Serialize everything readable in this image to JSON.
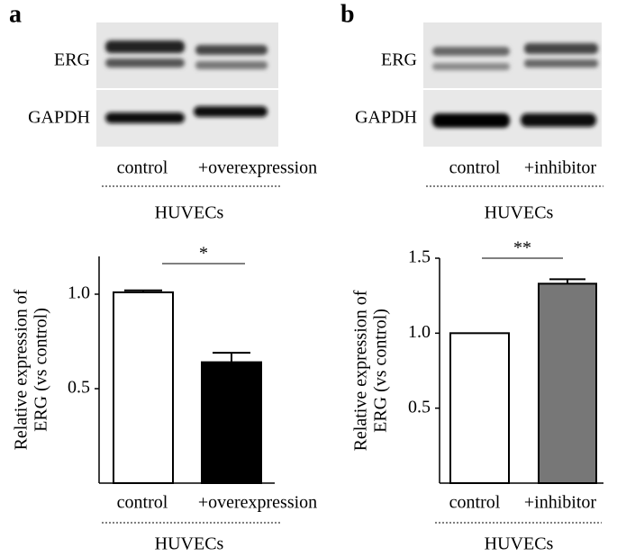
{
  "blots": [
    {
      "letter": "a",
      "rows": [
        "ERG",
        "GAPDH"
      ],
      "lanes": [
        "control",
        "+overexpression"
      ],
      "group": "HUVECs"
    },
    {
      "letter": "b",
      "rows": [
        "ERG",
        "GAPDH"
      ],
      "lanes": [
        "control",
        "+inhibitor"
      ],
      "group": "HUVECs"
    }
  ],
  "chart_data": [
    {
      "type": "bar",
      "ylabel": [
        "Relative expression of",
        "ERG (vs control)"
      ],
      "categories": [
        "control",
        "+overexpression"
      ],
      "group": "HUVECs",
      "values": [
        1.01,
        0.64
      ],
      "errors": [
        0.01,
        0.05
      ],
      "colors": [
        "#ffffff",
        "#000000"
      ],
      "ylim": [
        0,
        1.2
      ],
      "yticks": [
        0.5,
        {
          "value": 1,
          "label": "1.0"
        }
      ],
      "significance": "*"
    },
    {
      "type": "bar",
      "ylabel": [
        "Relative expression of",
        "ERG (vs control)"
      ],
      "categories": [
        "control",
        "+inhibitor"
      ],
      "group": "HUVECs",
      "values": [
        1.0,
        1.33
      ],
      "errors": [
        0,
        0.03
      ],
      "colors": [
        "#ffffff",
        "#777777"
      ],
      "ylim": [
        0,
        1.5
      ],
      "yticks": [
        0.5,
        {
          "value": 1,
          "label": "1.0"
        },
        1.5
      ],
      "significance": "**"
    }
  ]
}
